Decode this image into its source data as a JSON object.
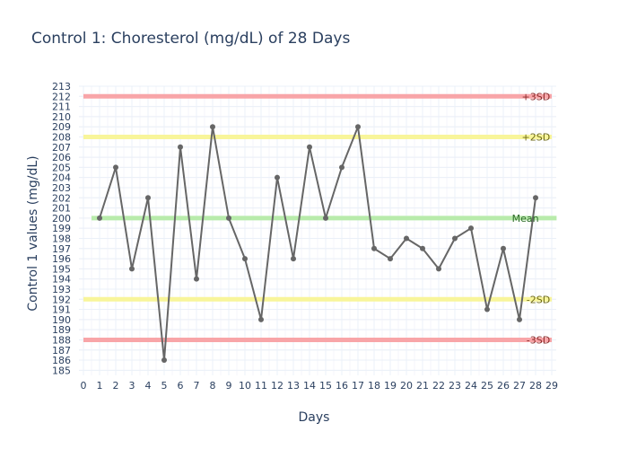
{
  "chart_data": {
    "type": "line",
    "title": "Control 1: Choresterol (mg/dL) of 28 Days",
    "xlabel": "Days",
    "ylabel": "Control 1 values (mg/dL)",
    "xlim": [
      0,
      29
    ],
    "ylim": [
      184.5,
      213
    ],
    "grid": true,
    "x": [
      1,
      2,
      3,
      4,
      5,
      6,
      7,
      8,
      9,
      10,
      11,
      12,
      13,
      14,
      15,
      16,
      17,
      18,
      19,
      20,
      21,
      22,
      23,
      24,
      25,
      26,
      27,
      28
    ],
    "series": [
      {
        "values": [
          200,
          205,
          195,
          202,
          186,
          207,
          194,
          209,
          200,
          196,
          190,
          204,
          196,
          207,
          200,
          205,
          209,
          197,
          196,
          198,
          197,
          195,
          198,
          199,
          191,
          197,
          190,
          202
        ],
        "color": "#666666"
      }
    ],
    "reference_lines": [
      {
        "label": "+3SD",
        "value": 212,
        "color": "#f8a5a8",
        "text_color": "#8a2a2a"
      },
      {
        "label": "+2SD",
        "value": 208,
        "color": "#f8f59a",
        "text_color": "#6e6a16"
      },
      {
        "label": "Mean",
        "value": 200,
        "color": "#b8ebab",
        "text_color": "#2e6a2a"
      },
      {
        "label": "-2SD",
        "value": 192,
        "color": "#f8f59a",
        "text_color": "#6e6a16"
      },
      {
        "label": "-3SD",
        "value": 188,
        "color": "#f8a5a8",
        "text_color": "#8a2a2a"
      }
    ]
  }
}
